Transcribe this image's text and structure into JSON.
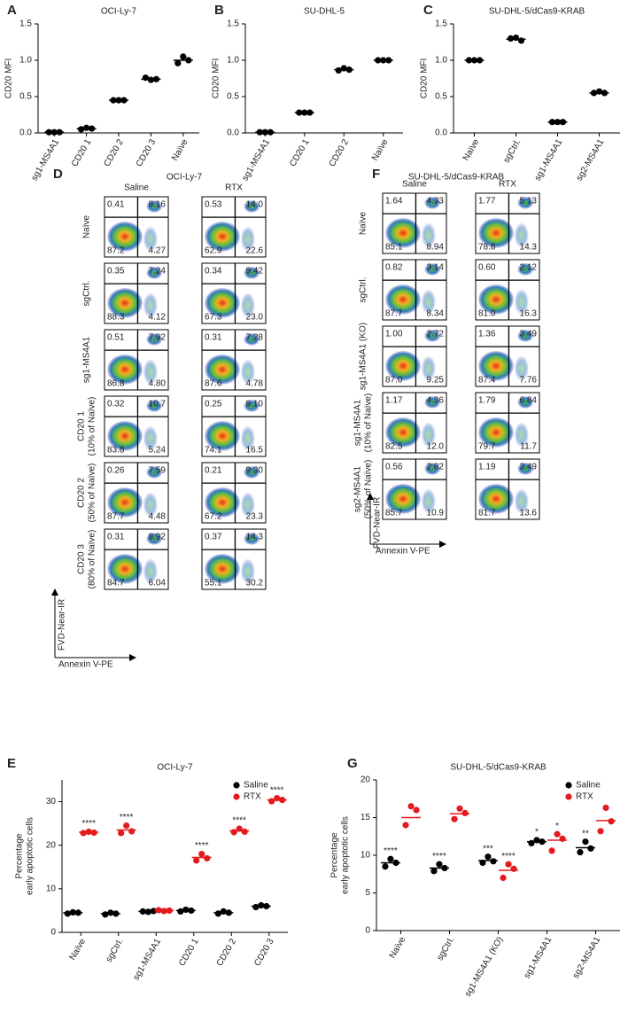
{
  "chart_data": [
    {
      "type": "dot",
      "panel_label": "A",
      "title": "OCI-Ly-7",
      "ylabel": "CD20 MFI",
      "categories": [
        "sg1-MS4A1",
        "CD20 1",
        "CD20 2",
        "CD20 3",
        "Naïve"
      ],
      "series": [
        {
          "color": "#000000",
          "values": [
            [
              0.01,
              0.01,
              0.01
            ],
            [
              0.05,
              0.07,
              0.06
            ],
            [
              0.45,
              0.45,
              0.45
            ],
            [
              0.76,
              0.73,
              0.74
            ],
            [
              0.96,
              1.05,
              1.0
            ]
          ],
          "means": [
            0.01,
            0.06,
            0.45,
            0.74,
            1.0
          ]
        }
      ],
      "ylim": [
        0,
        1.5
      ],
      "yticks": [
        {
          "value": 0,
          "label": "0.0"
        },
        {
          "value": 0.5,
          "label": "0.5"
        },
        {
          "value": 1,
          "label": "1.0"
        },
        {
          "value": 1.5,
          "label": "1.5"
        }
      ]
    },
    {
      "type": "dot",
      "panel_label": "B",
      "title": "SU-DHL-5",
      "ylabel": "CD20 MFI",
      "categories": [
        "sg1-MS4A1",
        "CD20 1",
        "CD20 2",
        "Naïve"
      ],
      "series": [
        {
          "color": "#000000",
          "values": [
            [
              0.01,
              0.01,
              0.01
            ],
            [
              0.28,
              0.28,
              0.28
            ],
            [
              0.86,
              0.89,
              0.87
            ],
            [
              1.0,
              1.0,
              1.0
            ]
          ],
          "means": [
            0.01,
            0.28,
            0.87,
            1.0
          ]
        }
      ],
      "ylim": [
        0,
        1.5
      ],
      "yticks": [
        {
          "value": 0,
          "label": "0.0"
        },
        {
          "value": 0.5,
          "label": "0.5"
        },
        {
          "value": 1,
          "label": "1.0"
        },
        {
          "value": 1.5,
          "label": "1.5"
        }
      ]
    },
    {
      "type": "dot",
      "panel_label": "C",
      "title": "SU-DHL-5/dCas9-KRAB",
      "ylabel": "CD20 MFI",
      "categories": [
        "Naïve",
        "sgCtrl.",
        "sg1-MS4A1",
        "sg2-MS4A1"
      ],
      "series": [
        {
          "color": "#000000",
          "values": [
            [
              1.0,
              1.0,
              1.0
            ],
            [
              1.3,
              1.31,
              1.27
            ],
            [
              0.15,
              0.15,
              0.15
            ],
            [
              0.55,
              0.57,
              0.55
            ]
          ],
          "means": [
            1.0,
            1.29,
            0.15,
            0.55
          ]
        }
      ],
      "ylim": [
        0,
        1.5
      ],
      "yticks": [
        {
          "value": 0,
          "label": "0.0"
        },
        {
          "value": 0.5,
          "label": "0.5"
        },
        {
          "value": 1,
          "label": "1.0"
        },
        {
          "value": 1.5,
          "label": "1.5"
        }
      ]
    },
    {
      "type": "dot",
      "panel_label": "E",
      "title": "OCI-Ly-7",
      "ylabel": [
        "Percentage",
        "early apoptotic cells"
      ],
      "categories": [
        "Naïve",
        "sgCtrl.",
        "sg1-MS4A1",
        "CD20 1",
        "CD20 2",
        "CD20 3"
      ],
      "series": [
        {
          "name": "Saline",
          "color": "#000000",
          "values": [
            [
              4.3,
              4.6,
              4.5
            ],
            [
              4.1,
              4.5,
              4.3
            ],
            [
              4.8,
              4.7,
              4.9
            ],
            [
              4.8,
              5.2,
              5.0
            ],
            [
              4.3,
              4.8,
              4.5
            ],
            [
              5.8,
              6.2,
              6.0
            ]
          ],
          "means": [
            4.5,
            4.3,
            4.8,
            5.0,
            4.5,
            6.0
          ]
        },
        {
          "name": "RTX",
          "color": "#e41a1c",
          "values": [
            [
              22.8,
              23.1,
              22.9
            ],
            [
              22.8,
              24.5,
              23.2
            ],
            [
              5.1,
              4.9,
              5.0
            ],
            [
              16.5,
              18.0,
              17.0
            ],
            [
              23.0,
              23.8,
              23.1
            ],
            [
              30.1,
              30.8,
              30.4
            ]
          ],
          "means": [
            23.0,
            23.5,
            5.0,
            17.2,
            23.3,
            30.4
          ],
          "annotations": [
            "****",
            "****",
            null,
            "****",
            "****",
            "****"
          ]
        }
      ],
      "ylim": [
        0,
        35
      ],
      "yticks": [
        0,
        10,
        20,
        30
      ],
      "legend": "upper right"
    },
    {
      "type": "dot",
      "panel_label": "G",
      "title": "SU-DHL-5/dCas9-KRAB",
      "ylabel": [
        "Percentage",
        "early apoptotic cells"
      ],
      "categories": [
        "Naïve",
        "sgCtrl.",
        "sg1-MS4A1 (KO)",
        "sg1-MS4A1",
        "sg2-MS4A1"
      ],
      "series": [
        {
          "name": "Saline",
          "color": "#000000",
          "values": [
            [
              8.5,
              9.5,
              9.0
            ],
            [
              7.9,
              8.8,
              8.3
            ],
            [
              9.0,
              9.8,
              9.2
            ],
            [
              11.6,
              12.0,
              11.8
            ],
            [
              10.4,
              11.8,
              10.9
            ]
          ],
          "means": [
            9.0,
            8.3,
            9.3,
            11.8,
            11.0
          ],
          "annotations": [
            "****",
            "****",
            "***",
            "*",
            "**"
          ]
        },
        {
          "name": "RTX",
          "color": "#e41a1c",
          "values": [
            [
              14.0,
              16.5,
              16.0
            ],
            [
              14.8,
              16.2,
              15.6
            ],
            [
              7.0,
              8.8,
              8.2
            ],
            [
              10.6,
              12.8,
              12.2
            ],
            [
              13.2,
              16.3,
              14.5
            ]
          ],
          "means": [
            15.0,
            15.5,
            8.0,
            12.0,
            14.6
          ],
          "annotations": [
            null,
            null,
            "****",
            "*",
            null
          ]
        }
      ],
      "ylim": [
        0,
        20
      ],
      "yticks": [
        0,
        5,
        10,
        15,
        20
      ],
      "legend": "upper right"
    }
  ],
  "flow_panels": [
    {
      "panel_label": "D",
      "title": "OCI-Ly-7",
      "columns": [
        "Saline",
        "RTX"
      ],
      "y_axis_label": "FVD-Near-IR",
      "x_axis_label": "Annexin V-PE",
      "rows": [
        {
          "label": "Naïve",
          "cells": [
            [
              "0.41",
              "8.16",
              "87.2",
              "4.27"
            ],
            [
              "0.53",
              "14.0",
              "62.9",
              "22.6"
            ]
          ]
        },
        {
          "label": "sgCtrl.",
          "cells": [
            [
              "0.35",
              "7.24",
              "88.3",
              "4.12"
            ],
            [
              "0.34",
              "9.42",
              "67.3",
              "23.0"
            ]
          ]
        },
        {
          "label": "sg1-MS4A1",
          "cells": [
            [
              "0.51",
              "7.92",
              "86.8",
              "4.80"
            ],
            [
              "0.31",
              "7.28",
              "87.6",
              "4.78"
            ]
          ]
        },
        {
          "label": "CD20 1",
          "sublabel": "(10% of Naïve)",
          "cells": [
            [
              "0.32",
              "10.7",
              "83.8",
              "5.24"
            ],
            [
              "0.25",
              "9.10",
              "74.1",
              "16.5"
            ]
          ]
        },
        {
          "label": "CD20 2",
          "sublabel": "(50% of Naïve)",
          "cells": [
            [
              "0.26",
              "7.59",
              "87.7",
              "4.48"
            ],
            [
              "0.21",
              "9.30",
              "67.2",
              "23.3"
            ]
          ]
        },
        {
          "label": "CD20 3",
          "sublabel": "(80% of Naïve)",
          "cells": [
            [
              "0.31",
              "8.92",
              "84.7",
              "6.04"
            ],
            [
              "0.37",
              "14.3",
              "55.1",
              "30.2"
            ]
          ]
        }
      ]
    },
    {
      "panel_label": "F",
      "title": "SU-DHL-5/dCas9-KRAB",
      "columns": [
        "Saline",
        "RTX"
      ],
      "y_axis_label": "FVD-Near-IR",
      "x_axis_label": "Annexin V-PE",
      "rows": [
        {
          "label": "Naïve",
          "cells": [
            [
              "1.64",
              "4.33",
              "85.1",
              "8.94"
            ],
            [
              "1.77",
              "5.13",
              "78.8",
              "14.3"
            ]
          ]
        },
        {
          "label": "sgCtrl.",
          "cells": [
            [
              "0.82",
              "3.14",
              "87.7",
              "8.34"
            ],
            [
              "0.60",
              "2.12",
              "81.0",
              "16.3"
            ]
          ]
        },
        {
          "label": "sg1-MS4A1 (KO)",
          "cells": [
            [
              "1.00",
              "2.72",
              "87.0",
              "9.25"
            ],
            [
              "1.36",
              "3.49",
              "87.4",
              "7.76"
            ]
          ]
        },
        {
          "label": "sg1-MS4A1",
          "sublabel": "(10% of Naïve)",
          "cells": [
            [
              "1.17",
              "4.36",
              "82.5",
              "12.0"
            ],
            [
              "1.79",
              "6.84",
              "79.7",
              "11.7"
            ]
          ]
        },
        {
          "label": "sg2-MS4A1",
          "sublabel": "(50% of Naïve)",
          "cells": [
            [
              "0.56",
              "2.82",
              "85.7",
              "10.9"
            ],
            [
              "1.19",
              "3.49",
              "81.7",
              "13.6"
            ]
          ]
        }
      ]
    }
  ]
}
